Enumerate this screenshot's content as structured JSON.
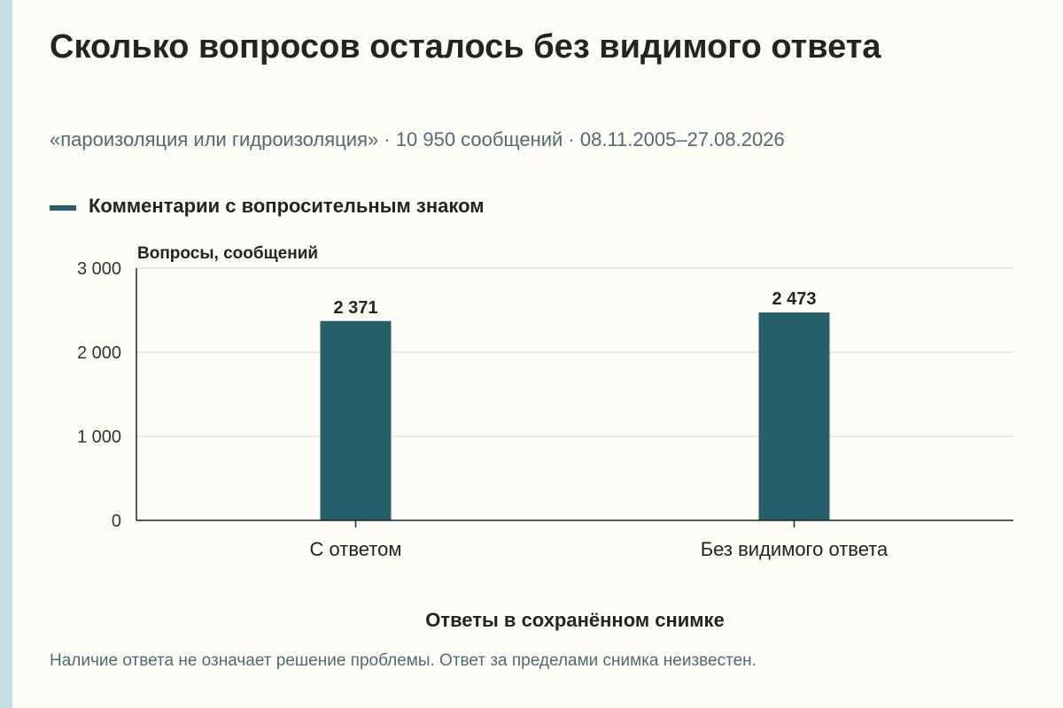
{
  "page": {
    "title": "Сколько вопросов осталось без видимого ответа",
    "subtitle": "«пароизоляция или гидроизоляция» · 10 950 сообщений · 08.11.2005–27.08.2026",
    "note": "Наличие ответа не означает решение проблемы. Ответ за пределами снимка неизвестен."
  },
  "colors": {
    "bar": "#25606b",
    "grid": "#d9d8d0",
    "axis": "#222222"
  },
  "chart_data": {
    "type": "bar",
    "categories": [
      "С ответом",
      "Без видимого ответа"
    ],
    "series": [
      {
        "name": "Комментарии с вопросительным знаком",
        "values": [
          2371,
          2473
        ],
        "value_labels": [
          "2 371",
          "2 473"
        ]
      }
    ],
    "ylabel": "Вопросы, сообщений",
    "xlabel": "Ответы в сохранённом снимке",
    "ylim": [
      0,
      3000
    ],
    "yticks": [
      0,
      1000,
      2000,
      3000
    ],
    "ytick_labels": [
      "0",
      "1 000",
      "2 000",
      "3 000"
    ],
    "grid": true,
    "legend_position": "top-left"
  }
}
